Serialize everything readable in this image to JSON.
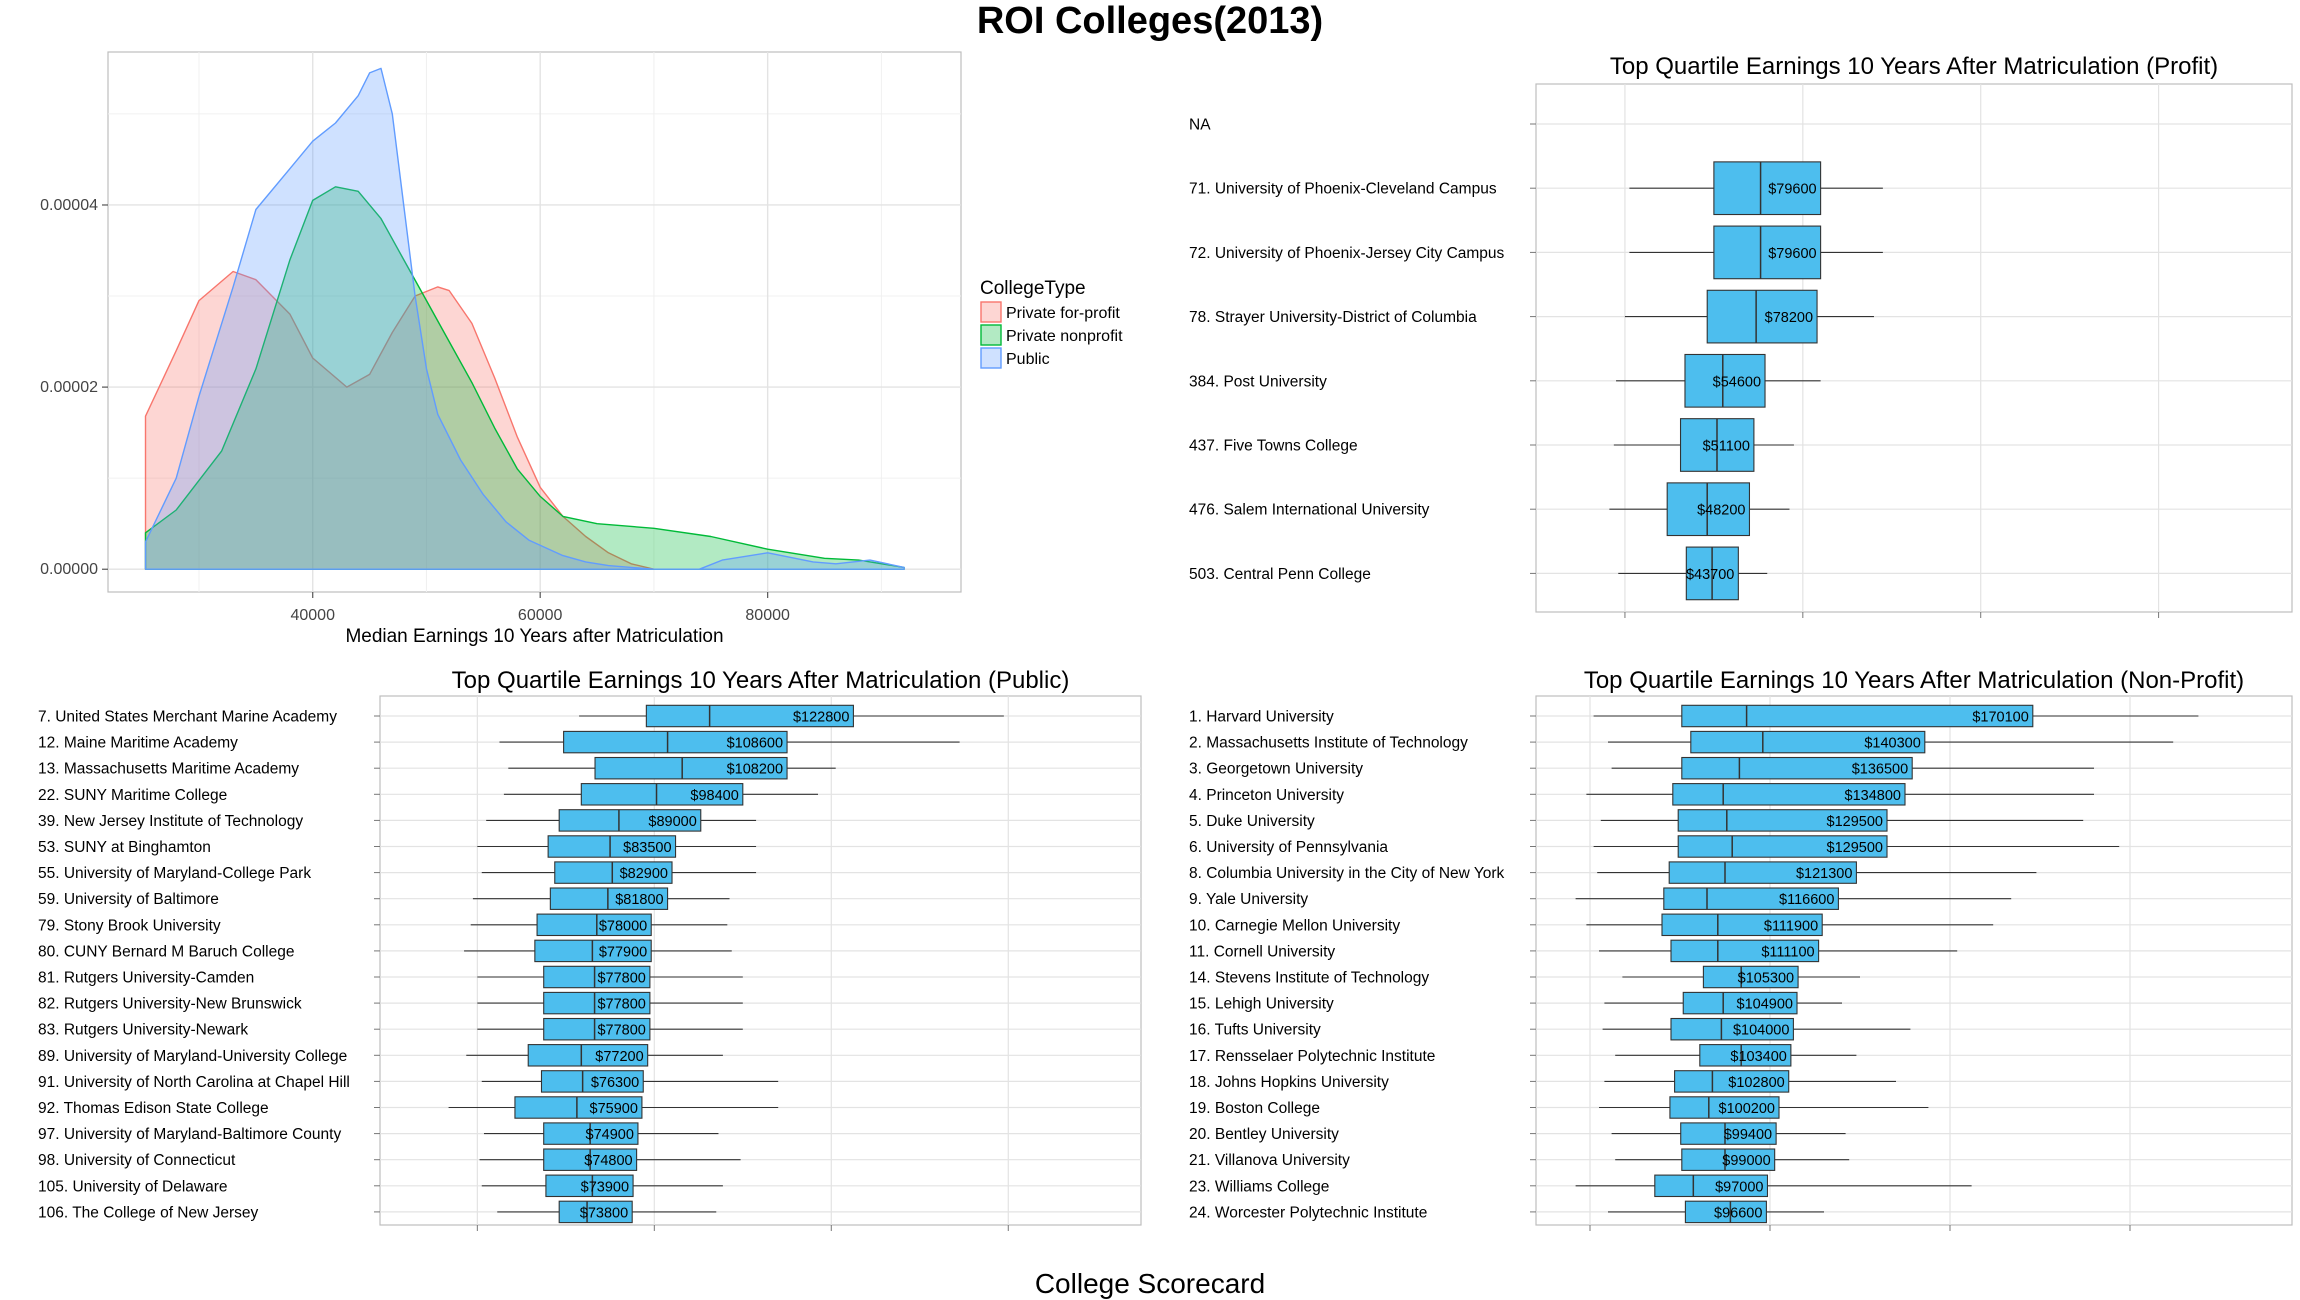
{
  "page": {
    "title": "ROI Colleges(2013)",
    "caption": "College Scorecard"
  },
  "chart_data": [
    {
      "type": "area",
      "xlabel": "Median Earnings 10 Years after Matriculation",
      "ylabel": "",
      "xlim": [
        22000,
        97000
      ],
      "ylim": [
        -2.5e-06,
        5.68e-05
      ],
      "x_ticks": [
        "40000",
        "60000",
        "80000"
      ],
      "y_ticks": [
        "0.00000",
        "0.00002",
        "0.00004"
      ],
      "grid": true,
      "legend": {
        "title": "CollegeType",
        "placement": "right"
      },
      "series": [
        {
          "name": "Private for-profit",
          "color": "#F8766D",
          "x": [
            25300,
            28000,
            30000,
            33000,
            35000,
            38000,
            40000,
            43000,
            45000,
            47000,
            49000,
            51000,
            52000,
            54000,
            56000,
            58000,
            60000,
            62000,
            64000,
            66000,
            68000,
            70000
          ],
          "y": [
            1.68e-05,
            2.4e-05,
            2.95e-05,
            3.27e-05,
            3.18e-05,
            2.8e-05,
            2.32e-05,
            2e-05,
            2.14e-05,
            2.6e-05,
            3e-05,
            3.1e-05,
            3.06e-05,
            2.7e-05,
            2.1e-05,
            1.45e-05,
            9e-06,
            5.8e-06,
            3.6e-06,
            1.8e-06,
            6e-07,
            0.0
          ]
        },
        {
          "name": "Private nonprofit",
          "color": "#00BA38",
          "x": [
            25300,
            28000,
            32000,
            35000,
            38000,
            40000,
            42000,
            44000,
            46000,
            48000,
            50000,
            52000,
            54000,
            56000,
            58000,
            60000,
            62000,
            65000,
            70000,
            75000,
            80000,
            85000,
            88000,
            92000
          ],
          "y": [
            4e-06,
            6.5e-06,
            1.3e-05,
            2.2e-05,
            3.4e-05,
            4.05e-05,
            4.2e-05,
            4.15e-05,
            3.85e-05,
            3.4e-05,
            2.95e-05,
            2.5e-05,
            2.05e-05,
            1.55e-05,
            1.1e-05,
            8e-06,
            5.8e-06,
            5e-06,
            4.5e-06,
            3.6e-06,
            2.2e-06,
            1.2e-06,
            1e-06,
            2e-07
          ]
        },
        {
          "name": "Public",
          "color": "#619CFF",
          "x": [
            25300,
            28000,
            30000,
            33000,
            35000,
            38000,
            40000,
            42000,
            44000,
            45000,
            46000,
            47000,
            48000,
            49000,
            50000,
            51000,
            53000,
            55000,
            57000,
            59000,
            62000,
            64000,
            66000,
            70000,
            74000,
            76000,
            80000,
            84000,
            86000,
            89000,
            92000
          ],
          "y": [
            3e-06,
            1e-05,
            1.9e-05,
            3.1e-05,
            3.95e-05,
            4.4e-05,
            4.7e-05,
            4.9e-05,
            5.2e-05,
            5.45e-05,
            5.5e-05,
            5e-05,
            4e-05,
            3e-05,
            2.2e-05,
            1.7e-05,
            1.2e-05,
            8.2e-06,
            5.2e-06,
            3.2e-06,
            1.5e-06,
            8e-07,
            4e-07,
            0.0,
            0.0,
            1e-06,
            1.8e-06,
            8e-07,
            6e-07,
            1e-06,
            2e-07
          ]
        }
      ]
    },
    {
      "type": "box",
      "title": "Top Quartile Earnings 10 Years After Matriculation (Profit)",
      "xlim": [
        20000,
        190000
      ],
      "categories": [
        "NA",
        "71. University of Phoenix-Cleveland Campus",
        "72. University of Phoenix-Jersey City Campus",
        "78. Strayer University-District of Columbia",
        "384. Post University",
        "437. Five Towns College",
        "476. Salem International University",
        "503. Central Penn College"
      ],
      "labels": [
        "",
        "$79600",
        "$79600",
        "$78200",
        "$54600",
        "$51100",
        "$48200",
        "$43700"
      ],
      "boxes": [
        null,
        {
          "whisker_low": 41000,
          "q1": 60000,
          "median": 70500,
          "q3": 84000,
          "whisker_high": 98000
        },
        {
          "whisker_low": 41000,
          "q1": 60000,
          "median": 70500,
          "q3": 84000,
          "whisker_high": 98000
        },
        {
          "whisker_low": 40000,
          "q1": 58500,
          "median": 69500,
          "q3": 83200,
          "whisker_high": 96000
        },
        {
          "whisker_low": 38000,
          "q1": 53500,
          "median": 62000,
          "q3": 71500,
          "whisker_high": 84000
        },
        {
          "whisker_low": 37500,
          "q1": 52500,
          "median": 60700,
          "q3": 69000,
          "whisker_high": 78000
        },
        {
          "whisker_low": 36500,
          "q1": 49500,
          "median": 58500,
          "q3": 68000,
          "whisker_high": 77000
        },
        {
          "whisker_low": 38500,
          "q1": 53800,
          "median": 59600,
          "q3": 65500,
          "whisker_high": 72000
        }
      ],
      "grid": true
    },
    {
      "type": "box",
      "title": "Top Quartile Earnings 10 Years After Matriculation (Public)",
      "xlim": [
        18000,
        190000
      ],
      "categories": [
        "7. United States Merchant Marine Academy",
        "12. Maine Maritime Academy",
        "13. Massachusetts Maritime Academy",
        "22. SUNY Maritime College",
        "39. New Jersey Institute of Technology",
        "53. SUNY at Binghamton",
        "55. University of Maryland-College Park",
        "59. University of Baltimore",
        "79. Stony Brook University",
        "80. CUNY Bernard M Baruch College",
        "81. Rutgers University-Camden",
        "82. Rutgers University-New Brunswick",
        "83. Rutgers University-Newark",
        "89. University of Maryland-University College",
        "91. University of North Carolina at Chapel Hill",
        "92. Thomas Edison State College",
        "97. University of Maryland-Baltimore County",
        "98. University of Connecticut",
        "105. University of Delaware",
        "106. The College of New Jersey"
      ],
      "labels": [
        "$122800",
        "$108600",
        "$108200",
        "$98400",
        "$89000",
        "$83500",
        "$82900",
        "$81800",
        "$78000",
        "$77900",
        "$77800",
        "$77800",
        "$77800",
        "$77200",
        "$76300",
        "$75900",
        "$74900",
        "$74800",
        "$73900",
        "$73800"
      ],
      "boxes": [
        {
          "whisker_low": 63000,
          "q1": 78200,
          "median": 92500,
          "q3": 125000,
          "whisker_high": 159000
        },
        {
          "whisker_low": 45000,
          "q1": 59500,
          "median": 83000,
          "q3": 110000,
          "whisker_high": 149000
        },
        {
          "whisker_low": 47000,
          "q1": 66600,
          "median": 86300,
          "q3": 110000,
          "whisker_high": 121000
        },
        {
          "whisker_low": 46000,
          "q1": 63500,
          "median": 80500,
          "q3": 100000,
          "whisker_high": 117000
        },
        {
          "whisker_low": 42000,
          "q1": 58500,
          "median": 72000,
          "q3": 90500,
          "whisker_high": 103000
        },
        {
          "whisker_low": 40000,
          "q1": 56000,
          "median": 70000,
          "q3": 84800,
          "whisker_high": 103000
        },
        {
          "whisker_low": 41000,
          "q1": 57500,
          "median": 70500,
          "q3": 84000,
          "whisker_high": 103000
        },
        {
          "whisker_low": 39000,
          "q1": 56500,
          "median": 69500,
          "q3": 83000,
          "whisker_high": 97000
        },
        {
          "whisker_low": 38500,
          "q1": 53500,
          "median": 67000,
          "q3": 79300,
          "whisker_high": 96500
        },
        {
          "whisker_low": 37000,
          "q1": 53000,
          "median": 66000,
          "q3": 79300,
          "whisker_high": 97500
        },
        {
          "whisker_low": 40000,
          "q1": 55000,
          "median": 66500,
          "q3": 79000,
          "whisker_high": 100000
        },
        {
          "whisker_low": 40000,
          "q1": 55000,
          "median": 66500,
          "q3": 79000,
          "whisker_high": 100000
        },
        {
          "whisker_low": 40000,
          "q1": 55000,
          "median": 66500,
          "q3": 79000,
          "whisker_high": 100000
        },
        {
          "whisker_low": 37500,
          "q1": 51500,
          "median": 63500,
          "q3": 78500,
          "whisker_high": 95500
        },
        {
          "whisker_low": 41000,
          "q1": 54500,
          "median": 63800,
          "q3": 77500,
          "whisker_high": 108000
        },
        {
          "whisker_low": 33500,
          "q1": 48500,
          "median": 62500,
          "q3": 77200,
          "whisker_high": 108000
        },
        {
          "whisker_low": 41500,
          "q1": 55000,
          "median": 65500,
          "q3": 76300,
          "whisker_high": 94500
        },
        {
          "whisker_low": 40500,
          "q1": 55000,
          "median": 65500,
          "q3": 76000,
          "whisker_high": 99500
        },
        {
          "whisker_low": 41000,
          "q1": 55500,
          "median": 66000,
          "q3": 75200,
          "whisker_high": 95500
        },
        {
          "whisker_low": 44500,
          "q1": 58500,
          "median": 64800,
          "q3": 75000,
          "whisker_high": 94000
        }
      ],
      "grid": true
    },
    {
      "type": "box",
      "title": "Top Quartile Earnings 10 Years After Matriculation (Non-Profit)",
      "xlim": [
        35000,
        245000
      ],
      "categories": [
        "1. Harvard University",
        "2. Massachusetts Institute of Technology",
        "3. Georgetown University",
        "4. Princeton University",
        "5. Duke University",
        "6. University of Pennsylvania",
        "8. Columbia University in the City of New York",
        "9. Yale University",
        "10. Carnegie Mellon University",
        "11. Cornell University",
        "14. Stevens Institute of Technology",
        "15. Lehigh University",
        "16. Tufts University",
        "17. Rensselaer Polytechnic Institute",
        "18. Johns Hopkins University",
        "19. Boston College",
        "20. Bentley University",
        "21. Villanova University",
        "23. Williams College",
        "24. Worcester Polytechnic Institute"
      ],
      "labels": [
        "$170100",
        "$140300",
        "$136500",
        "$134800",
        "$129500",
        "$129500",
        "$121300",
        "$116600",
        "$111900",
        "$111100",
        "$105300",
        "$104900",
        "$104000",
        "$103400",
        "$102800",
        "$100200",
        "$99400",
        "$99000",
        "$97000",
        "$96600"
      ],
      "boxes": [
        {
          "whisker_low": 51000,
          "q1": 75500,
          "median": 93500,
          "q3": 173000,
          "whisker_high": 219000
        },
        {
          "whisker_low": 55000,
          "q1": 78000,
          "median": 98000,
          "q3": 143000,
          "whisker_high": 212000
        },
        {
          "whisker_low": 56000,
          "q1": 75500,
          "median": 91500,
          "q3": 139500,
          "whisker_high": 190000
        },
        {
          "whisker_low": 49000,
          "q1": 73000,
          "median": 87000,
          "q3": 137500,
          "whisker_high": 190000
        },
        {
          "whisker_low": 53000,
          "q1": 74500,
          "median": 88000,
          "q3": 132500,
          "whisker_high": 187000
        },
        {
          "whisker_low": 51000,
          "q1": 74500,
          "median": 89500,
          "q3": 132500,
          "whisker_high": 197000
        },
        {
          "whisker_low": 52000,
          "q1": 72000,
          "median": 87500,
          "q3": 124000,
          "whisker_high": 174000
        },
        {
          "whisker_low": 46000,
          "q1": 70500,
          "median": 82500,
          "q3": 119000,
          "whisker_high": 167000
        },
        {
          "whisker_low": 49000,
          "q1": 70000,
          "median": 85500,
          "q3": 114500,
          "whisker_high": 162000
        },
        {
          "whisker_low": 52500,
          "q1": 72500,
          "median": 85500,
          "q3": 113500,
          "whisker_high": 152000
        },
        {
          "whisker_low": 59000,
          "q1": 81500,
          "median": 92000,
          "q3": 107800,
          "whisker_high": 125000
        },
        {
          "whisker_low": 54000,
          "q1": 75900,
          "median": 87000,
          "q3": 107500,
          "whisker_high": 120000
        },
        {
          "whisker_low": 53500,
          "q1": 72500,
          "median": 86500,
          "q3": 106500,
          "whisker_high": 139000
        },
        {
          "whisker_low": 57000,
          "q1": 80500,
          "median": 92000,
          "q3": 105800,
          "whisker_high": 124000
        },
        {
          "whisker_low": 54000,
          "q1": 73500,
          "median": 84000,
          "q3": 105200,
          "whisker_high": 135000
        },
        {
          "whisker_low": 52500,
          "q1": 72200,
          "median": 83000,
          "q3": 102500,
          "whisker_high": 144000
        },
        {
          "whisker_low": 56000,
          "q1": 75200,
          "median": 87500,
          "q3": 101700,
          "whisker_high": 121000
        },
        {
          "whisker_low": 57000,
          "q1": 75500,
          "median": 87500,
          "q3": 101300,
          "whisker_high": 122000
        },
        {
          "whisker_low": 46000,
          "q1": 68000,
          "median": 78700,
          "q3": 99300,
          "whisker_high": 156000
        },
        {
          "whisker_low": 55000,
          "q1": 76500,
          "median": 89000,
          "q3": 99000,
          "whisker_high": 115000
        }
      ],
      "grid": true
    }
  ]
}
